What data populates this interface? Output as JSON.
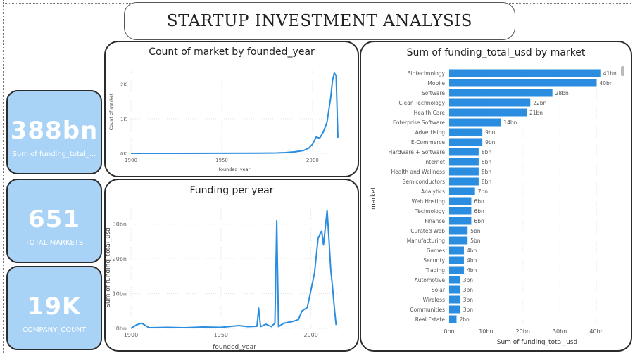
{
  "header": {
    "title": "STARTUP INVESTMENT ANALYSIS"
  },
  "kpis": [
    {
      "value": "388bn",
      "label": "Sum of funding_total_..."
    },
    {
      "value": "651",
      "label": "TOTAL MARKETS"
    },
    {
      "value": "19K",
      "label": "COMPANY_COUNT"
    }
  ],
  "colors": {
    "kpi_bg": "#a9d3f6",
    "series": "#2b8de0"
  },
  "chart_data": [
    {
      "type": "line",
      "title": "Count of market by founded_year",
      "xlabel": "founded_year",
      "ylabel": "Count of market",
      "xlim": [
        1900,
        2014
      ],
      "ylim": [
        0,
        2400
      ],
      "xticks": [
        "1900",
        "1950",
        "2000"
      ],
      "yticks": [
        "0K",
        "1K",
        "2K"
      ],
      "x": [
        1900,
        1950,
        1970,
        1980,
        1985,
        1990,
        1995,
        1998,
        2000,
        2002,
        2004,
        2006,
        2008,
        2010,
        2011,
        2012,
        2013,
        2014
      ],
      "y": [
        0,
        2,
        5,
        10,
        20,
        40,
        80,
        150,
        260,
        470,
        440,
        620,
        900,
        1600,
        2100,
        2320,
        2250,
        450
      ]
    },
    {
      "type": "line",
      "title": "Funding per year",
      "xlabel": "founded_year",
      "ylabel": "Sum of funding_total_usd",
      "xlim": [
        1900,
        2015
      ],
      "ylim": [
        0,
        35
      ],
      "xticks": [
        "1900",
        "1950",
        "2000"
      ],
      "yticks": [
        "0bn",
        "10bn",
        "20bn",
        "30bn"
      ],
      "x": [
        1900,
        1903,
        1906,
        1910,
        1920,
        1930,
        1940,
        1950,
        1960,
        1965,
        1970,
        1971,
        1972,
        1975,
        1978,
        1980,
        1981,
        1982,
        1985,
        1990,
        1993,
        1995,
        1998,
        2000,
        2002,
        2004,
        2005,
        2006,
        2007,
        2008,
        2009,
        2010,
        2011,
        2012,
        2013,
        2014
      ],
      "y": [
        0,
        1,
        1.5,
        0.2,
        0.3,
        0.2,
        0.4,
        0.3,
        0.8,
        0.5,
        0.6,
        5.8,
        0.5,
        1.2,
        0.5,
        1.5,
        31,
        0.5,
        1.5,
        2,
        2.5,
        5,
        6,
        11,
        16,
        26,
        27,
        28,
        24,
        29,
        34,
        26,
        17,
        12,
        6,
        1
      ]
    },
    {
      "type": "bar",
      "orientation": "horizontal",
      "title": "Sum of funding_total_usd by market",
      "xlabel": "Sum of funding_total_usd",
      "ylabel": "market",
      "xlim": [
        0,
        42
      ],
      "xticks": [
        "0bn",
        "10bn",
        "20bn",
        "30bn",
        "40bn"
      ],
      "categories": [
        "Biotechnology",
        "Mobile",
        "Software",
        "Clean Technology",
        "Health Care",
        "Enterprise Software",
        "Advertising",
        "E-Commerce",
        "Hardware + Software",
        "Internet",
        "Health and Wellness",
        "Semiconductors",
        "Analytics",
        "Web Hosting",
        "Technology",
        "Finance",
        "Curated Web",
        "Manufacturing",
        "Games",
        "Security",
        "Trading",
        "Automotive",
        "Solar",
        "Wireless",
        "Communities",
        "Real Estate"
      ],
      "values": [
        41,
        40,
        28,
        22,
        21,
        14,
        9,
        9,
        8,
        8,
        8,
        8,
        7,
        6,
        6,
        6,
        5,
        5,
        4,
        4,
        4,
        3,
        3,
        3,
        3,
        2
      ],
      "data_labels": [
        "41bn",
        "40bn",
        "28bn",
        "22bn",
        "21bn",
        "14bn",
        "9bn",
        "9bn",
        "8bn",
        "8bn",
        "8bn",
        "8bn",
        "7bn",
        "6bn",
        "6bn",
        "6bn",
        "5bn",
        "5bn",
        "4bn",
        "4bn",
        "4bn",
        "3bn",
        "3bn",
        "3bn",
        "3bn",
        "2bn"
      ]
    }
  ]
}
